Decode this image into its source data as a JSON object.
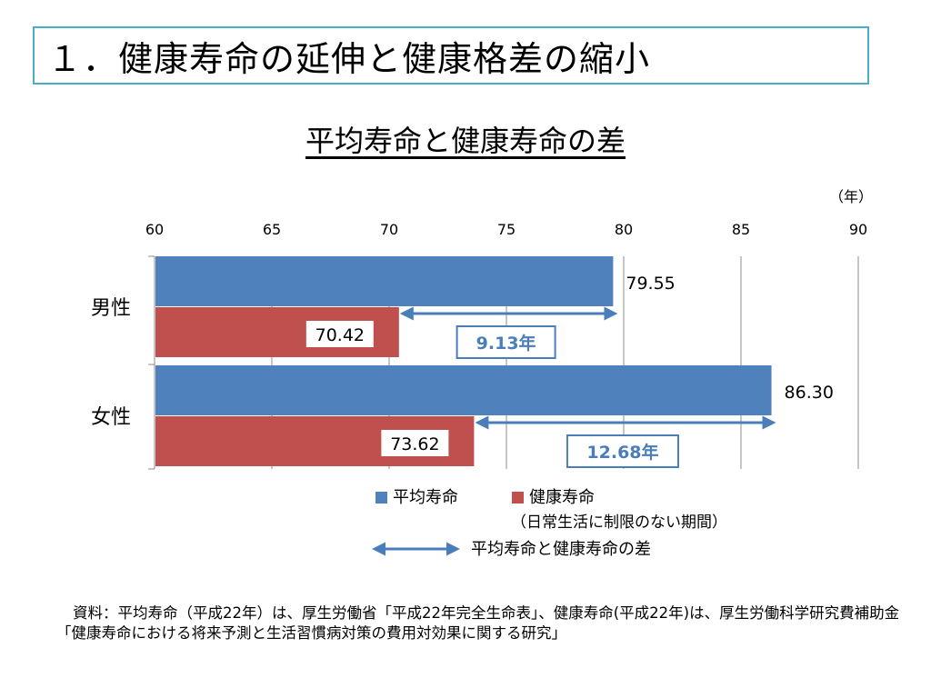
{
  "slide": {
    "title": "１．健康寿命の延伸と健康格差の縮小"
  },
  "chart_data": {
    "type": "bar",
    "orientation": "horizontal",
    "title": "平均寿命と健康寿命の差",
    "unit_label": "（年）",
    "xlim": [
      60,
      90
    ],
    "ticks": [
      "60",
      "65",
      "70",
      "75",
      "80",
      "85",
      "90"
    ],
    "grid": true,
    "categories": [
      "男性",
      "女性"
    ],
    "series": [
      {
        "name": "平均寿命",
        "color": "#4f81bd",
        "values": [
          79.55,
          86.3
        ],
        "labels": [
          "79.55",
          "86.30"
        ]
      },
      {
        "name": "健康寿命",
        "color": "#c0504d",
        "values": [
          70.42,
          73.62
        ],
        "labels": [
          "70.42",
          "73.62"
        ]
      }
    ],
    "differences": [
      {
        "category": "男性",
        "value": 9.13,
        "label": "9.13年"
      },
      {
        "category": "女性",
        "value": 12.68,
        "label": "12.68年"
      }
    ],
    "legend": {
      "placement": "bottom",
      "healthy_note": "（日常生活に制限のない期間）",
      "arrow_label": "平均寿命と健康寿命の差"
    }
  },
  "source": {
    "text": "資料：平均寿命（平成22年）は、厚生労働省「平成22年完全生命表」、健康寿命(平成22年)は、厚生労働科学研究費補助金「健康寿命における将来予測と生活習慣病対策の費用対効果に関する研究」"
  }
}
